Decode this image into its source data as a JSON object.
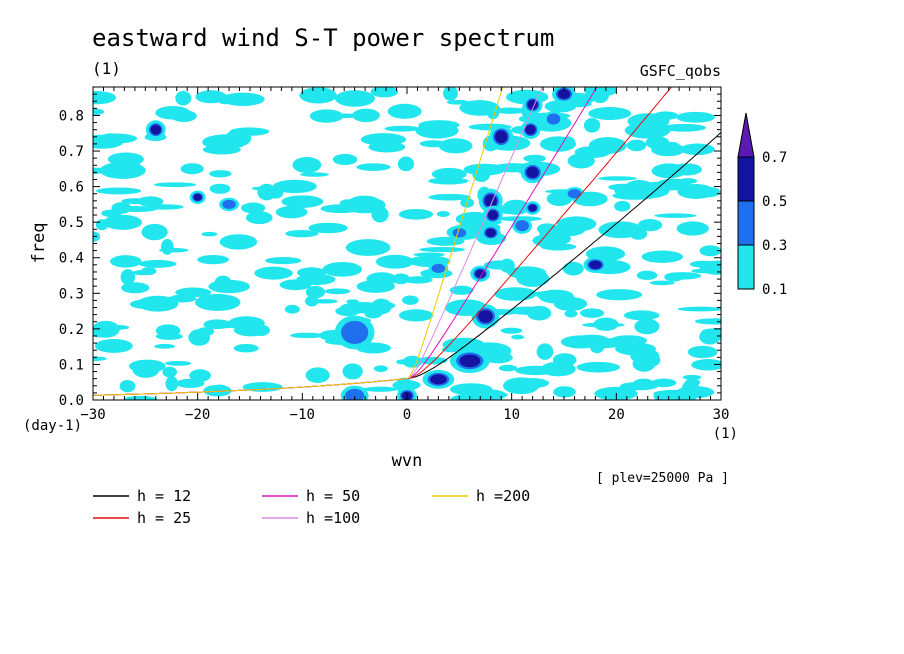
{
  "chart_data": {
    "type": "heatmap",
    "title": "eastward wind S-T power spectrum",
    "units_label": "(1)",
    "source_label": "GSFC_qobs",
    "xlabel": "wvn",
    "ylabel": "freq",
    "x_unit": "(1)",
    "y_unit": "(day-1)",
    "level_label": "[ plev=25000 Pa ]",
    "xlim": [
      -30,
      30
    ],
    "ylim": [
      0,
      0.88
    ],
    "x_ticks": [
      -30,
      -20,
      -10,
      0,
      10,
      20,
      30
    ],
    "y_ticks": [
      0.0,
      0.1,
      0.2,
      0.3,
      0.4,
      0.5,
      0.6,
      0.7,
      0.8
    ],
    "colorbar": {
      "levels": [
        0.1,
        0.3,
        0.5,
        0.7
      ],
      "colors": [
        "#22e6ee",
        "#1f6fee",
        "#1414a0",
        "#5a1ab4"
      ],
      "labels": [
        "0.1",
        "0.3",
        "0.5",
        "0.7"
      ]
    },
    "dispersion_curves": [
      {
        "h": 12,
        "label": "h = 12",
        "color": "#000000"
      },
      {
        "h": 25,
        "label": "h = 25",
        "color": "#e01010"
      },
      {
        "h": 50,
        "label": "h = 50",
        "color": "#e010c0"
      },
      {
        "h": 100,
        "label": "h =100",
        "color": "#d890e0"
      },
      {
        "h": 200,
        "label": "h =200",
        "color": "#ecc800"
      }
    ],
    "patches": [
      {
        "x": 6,
        "y": 0.11,
        "rx": 1.0,
        "ry": 0.018,
        "level": 0.5
      },
      {
        "x": 3,
        "y": 0.058,
        "rx": 0.8,
        "ry": 0.014,
        "level": 0.5
      },
      {
        "x": 0,
        "y": 0.012,
        "rx": 0.5,
        "ry": 0.012,
        "level": 0.5
      },
      {
        "x": -5,
        "y": 0.012,
        "rx": 0.7,
        "ry": 0.015,
        "level": 0.3
      },
      {
        "x": 7.5,
        "y": 0.235,
        "rx": 0.7,
        "ry": 0.018,
        "level": 0.5
      },
      {
        "x": 7,
        "y": 0.355,
        "rx": 0.5,
        "ry": 0.012,
        "level": 0.5
      },
      {
        "x": 8,
        "y": 0.56,
        "rx": 0.6,
        "ry": 0.018,
        "level": 0.5
      },
      {
        "x": 8.2,
        "y": 0.52,
        "rx": 0.5,
        "ry": 0.014,
        "level": 0.5
      },
      {
        "x": 8,
        "y": 0.47,
        "rx": 0.5,
        "ry": 0.012,
        "level": 0.5
      },
      {
        "x": 9,
        "y": 0.74,
        "rx": 0.6,
        "ry": 0.018,
        "level": 0.5
      },
      {
        "x": 12,
        "y": 0.64,
        "rx": 0.6,
        "ry": 0.016,
        "level": 0.5
      },
      {
        "x": 11,
        "y": 0.49,
        "rx": 0.5,
        "ry": 0.012,
        "level": 0.3
      },
      {
        "x": 11.8,
        "y": 0.76,
        "rx": 0.5,
        "ry": 0.014,
        "level": 0.5
      },
      {
        "x": 12,
        "y": 0.54,
        "rx": 0.4,
        "ry": 0.01,
        "level": 0.5
      },
      {
        "x": 18,
        "y": 0.38,
        "rx": 0.6,
        "ry": 0.012,
        "level": 0.5
      },
      {
        "x": 12,
        "y": 0.83,
        "rx": 0.5,
        "ry": 0.014,
        "level": 0.5
      },
      {
        "x": 15,
        "y": 0.86,
        "rx": 0.6,
        "ry": 0.014,
        "level": 0.5
      },
      {
        "x": -24,
        "y": 0.76,
        "rx": 0.5,
        "ry": 0.014,
        "level": 0.5
      },
      {
        "x": -20,
        "y": 0.57,
        "rx": 0.4,
        "ry": 0.01,
        "level": 0.5
      },
      {
        "x": -17,
        "y": 0.55,
        "rx": 0.5,
        "ry": 0.01,
        "level": 0.3
      },
      {
        "x": -5,
        "y": 0.19,
        "rx": 1.0,
        "ry": 0.025,
        "level": 0.3
      },
      {
        "x": 3,
        "y": 0.37,
        "rx": 0.5,
        "ry": 0.01,
        "level": 0.3
      },
      {
        "x": 5,
        "y": 0.47,
        "rx": 0.5,
        "ry": 0.01,
        "level": 0.3
      },
      {
        "x": 16,
        "y": 0.58,
        "rx": 0.5,
        "ry": 0.01,
        "level": 0.3
      },
      {
        "x": 14,
        "y": 0.79,
        "rx": 0.5,
        "ry": 0.012,
        "level": 0.3
      }
    ]
  }
}
